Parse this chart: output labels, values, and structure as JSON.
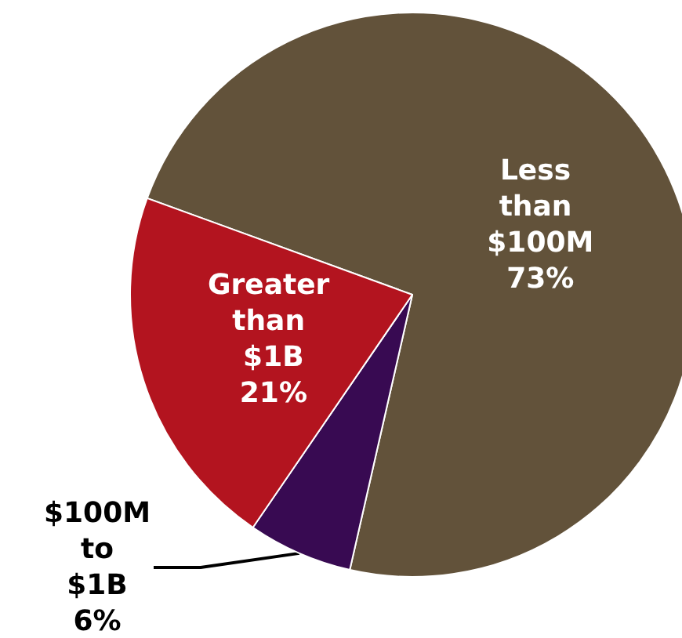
{
  "chart_data": {
    "type": "pie",
    "categories": [
      "Less than $100M",
      "$100M to $1B",
      "Greater than $1B"
    ],
    "values": [
      73,
      6,
      21
    ],
    "value_labels": [
      "73%",
      "6%",
      "21%"
    ],
    "colors": [
      "#62523a",
      "#380a52",
      "#b3141f"
    ],
    "legend": false
  }
}
